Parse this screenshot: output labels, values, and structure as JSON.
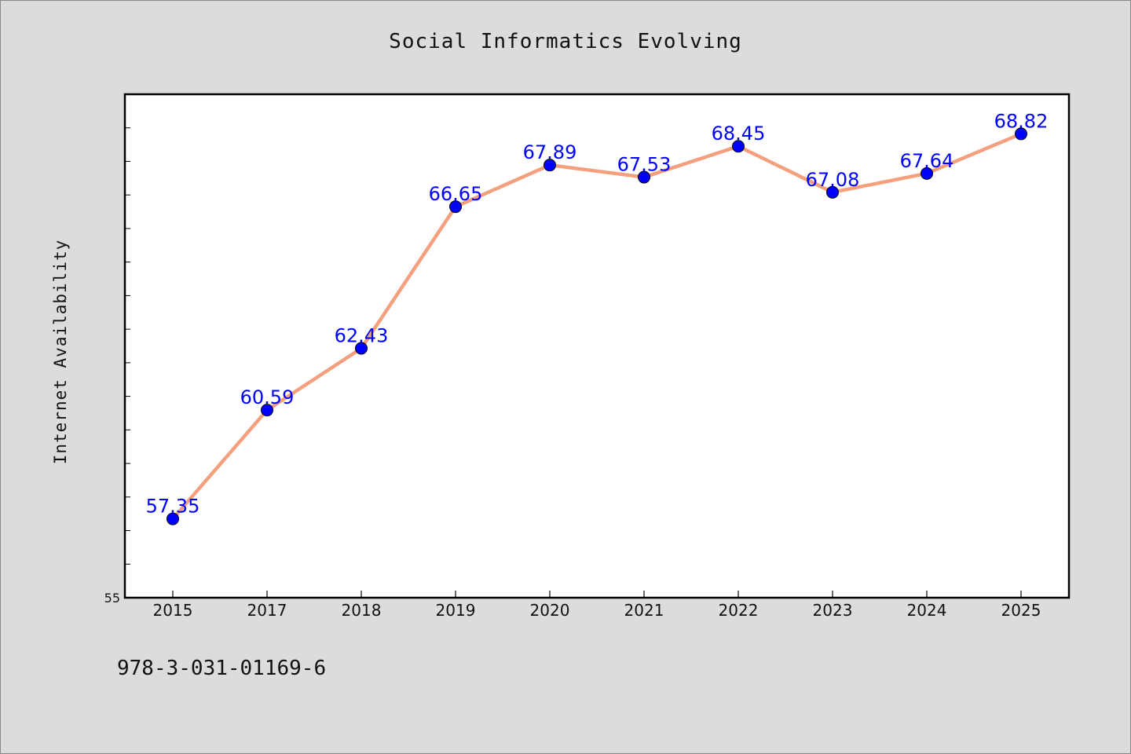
{
  "chart_data": {
    "type": "line",
    "title": "Social Informatics Evolving",
    "xlabel": "",
    "ylabel": "Internet Availability",
    "categories": [
      "2015",
      "2017",
      "2018",
      "2019",
      "2020",
      "2021",
      "2022",
      "2023",
      "2024",
      "2025"
    ],
    "series": [
      {
        "values": [
          57.35,
          60.59,
          62.43,
          66.65,
          67.89,
          67.53,
          68.45,
          67.08,
          67.64,
          68.82
        ]
      }
    ],
    "data_labels": [
      "57.35",
      "60.59",
      "62.43",
      "66.65",
      "67.89",
      "67.53",
      "68.45",
      "67.08",
      "67.64",
      "68.82"
    ],
    "ylim": [
      55,
      70
    ],
    "yticks_labeled": [
      "55"
    ],
    "grid": false,
    "legend": "none",
    "colors": {
      "line": "#f4a07f",
      "marker": "#0000ff",
      "data_label": "#0000ff",
      "background": "#dcdcdc",
      "plot_area": "#ffffff"
    }
  },
  "footer": {
    "isbn": "978-3-031-01169-6"
  }
}
